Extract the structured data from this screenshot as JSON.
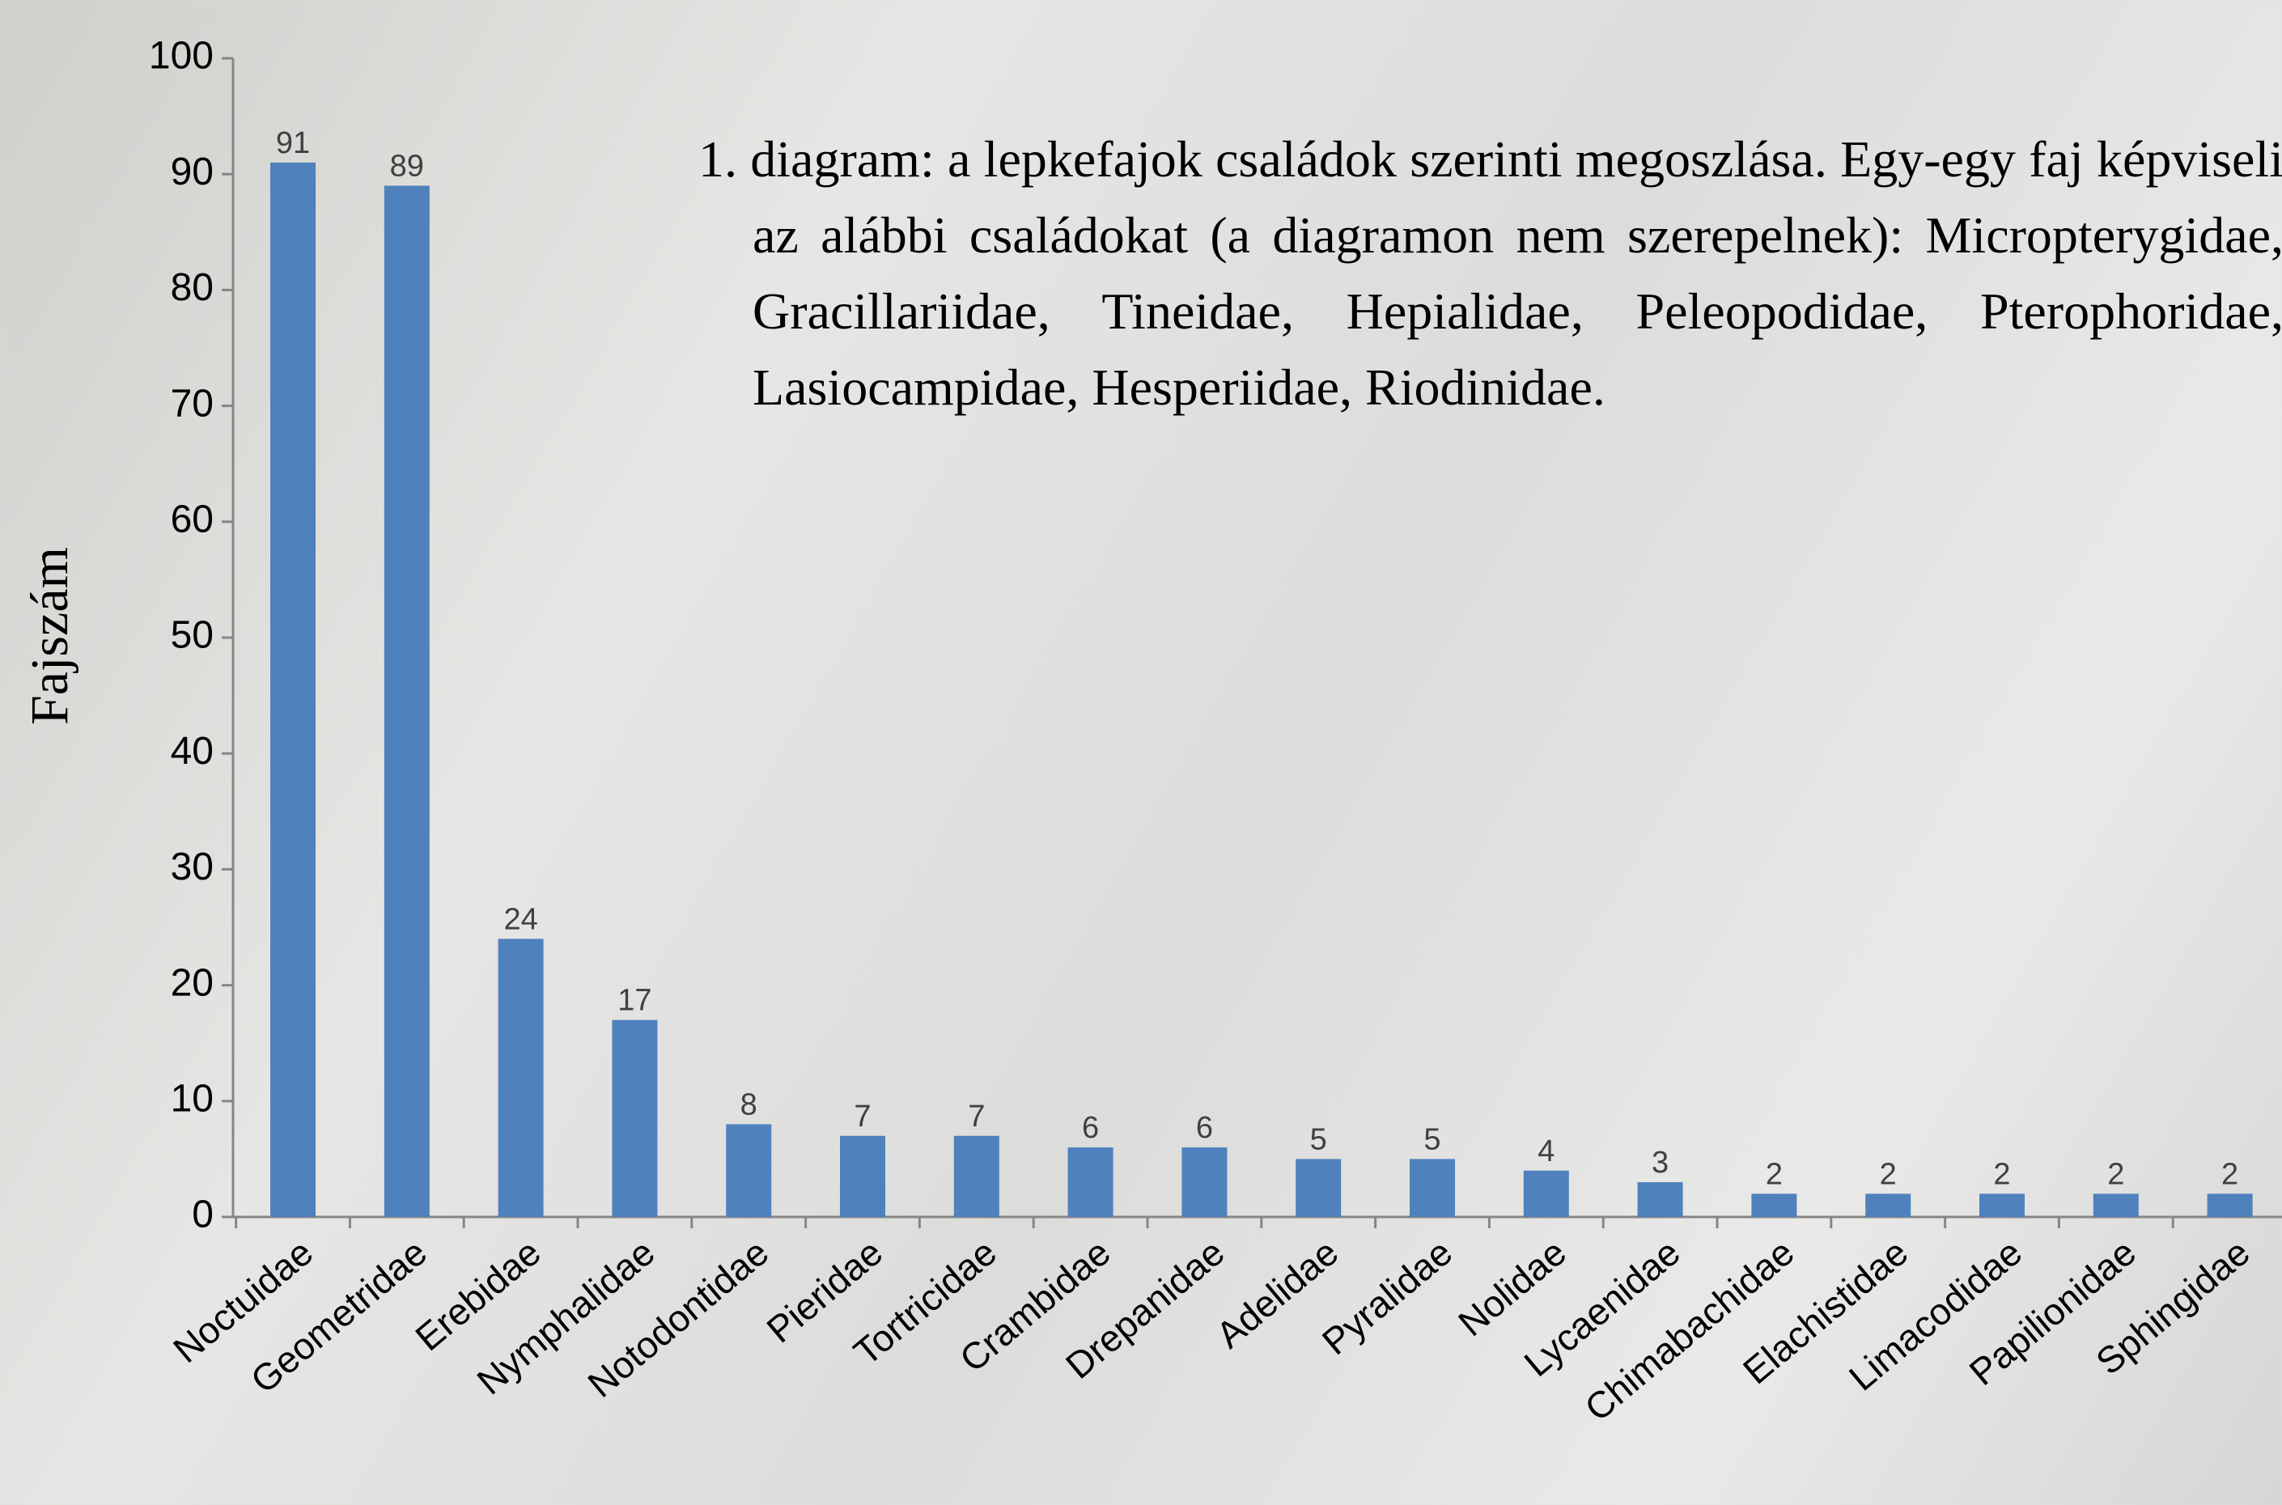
{
  "chart_data": {
    "type": "bar",
    "title": "1. diagram: a lepkefajok családok szerinti megoszlása. Egy-egy faj képviseli az alábbi családokat (a diagramon nem szerepelnek): Micropterygidae, Gracillariidae, Tineidae, Hepialidae, Peleopodidae, Pterophoridae, Lasiocampidae, Hesperiidae, Riodinidae.",
    "y_label": "Fajszám",
    "categories": [
      "Noctuidae",
      "Geometridae",
      "Erebidae",
      "Nymphalidae",
      "Notodontidae",
      "Pieridae",
      "Tortricidae",
      "Crambidae",
      "Drepanidae",
      "Adelidae",
      "Pyralidae",
      "Nolidae",
      "Lycaenidae",
      "Chimabachidae",
      "Elachistidae",
      "Limacodidae",
      "Papilionidae",
      "Sphingidae"
    ],
    "values": [
      91,
      89,
      24,
      17,
      8,
      7,
      7,
      6,
      6,
      5,
      5,
      4,
      3,
      2,
      2,
      2,
      2,
      2
    ],
    "color": "#4f81bd",
    "ylim": [
      0,
      100
    ],
    "yticks": [
      0,
      10,
      20,
      30,
      40,
      50,
      60,
      70,
      80,
      90,
      100
    ]
  }
}
